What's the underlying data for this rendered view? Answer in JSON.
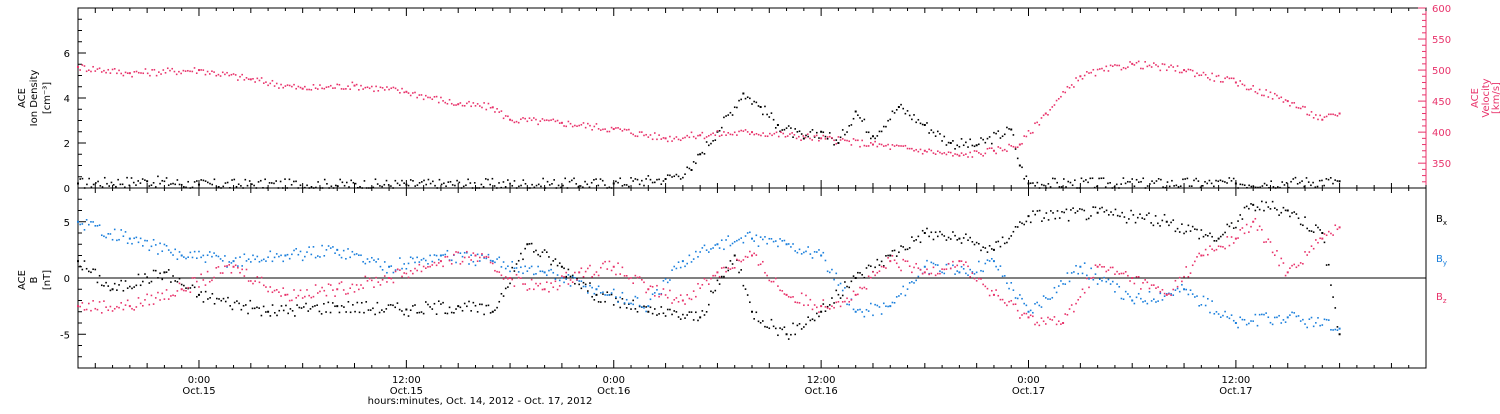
{
  "colors": {
    "black": "#000000",
    "pink": "#e8336b",
    "blue": "#1a7fdc"
  },
  "time_axis": {
    "start": "2012-10-14 17:00",
    "end": "2012-10-17 23:00",
    "xlabel": "hours:minutes, Oct. 14, 2012 - Oct. 17, 2012",
    "ticks": [
      {
        "time": "2012-10-15 00:00",
        "hm": "0:00",
        "date": "Oct.15"
      },
      {
        "time": "2012-10-15 12:00",
        "hm": "12:00",
        "date": "Oct.15"
      },
      {
        "time": "2012-10-16 00:00",
        "hm": "0:00",
        "date": "Oct.16"
      },
      {
        "time": "2012-10-16 12:00",
        "hm": "12:00",
        "date": "Oct.16"
      },
      {
        "time": "2012-10-17 00:00",
        "hm": "0:00",
        "date": "Oct.17"
      },
      {
        "time": "2012-10-17 12:00",
        "hm": "12:00",
        "date": "Oct.17"
      }
    ]
  },
  "chart_data": [
    {
      "type": "scatter",
      "panel": "top",
      "ylabel_lines": [
        "ACE",
        "Ion Density",
        "[cm⁻³]"
      ],
      "ylim": [
        0,
        8
      ],
      "yticks": [
        0,
        2,
        4,
        6
      ],
      "y2label_lines": [
        "ACE",
        "Velocity",
        "[km/s]"
      ],
      "y2lim": [
        310,
        600
      ],
      "y2ticks": [
        350,
        400,
        450,
        500,
        550,
        600
      ],
      "series": [
        {
          "key": "density",
          "axis": "left",
          "color": "#000000",
          "points": [
            [
              "2012-10-14 17:00",
              0.2
            ],
            [
              "2012-10-14 21:00",
              0.3
            ],
            [
              "2012-10-15 00:00",
              0.15
            ],
            [
              "2012-10-15 12:00",
              0.15
            ],
            [
              "2012-10-16 00:00",
              0.2
            ],
            [
              "2012-10-16 03:00",
              0.4
            ],
            [
              "2012-10-16 04:30",
              0.8
            ],
            [
              "2012-10-16 05:00",
              1.5
            ],
            [
              "2012-10-16 06:00",
              2.5
            ],
            [
              "2012-10-16 07:30",
              4.2
            ],
            [
              "2012-10-16 08:30",
              3.6
            ],
            [
              "2012-10-16 09:30",
              2.8
            ],
            [
              "2012-10-16 11:00",
              2.2
            ],
            [
              "2012-10-16 12:00",
              2.5
            ],
            [
              "2012-10-16 13:00",
              2.0
            ],
            [
              "2012-10-16 14:00",
              3.4
            ],
            [
              "2012-10-16 15:00",
              2.3
            ],
            [
              "2012-10-16 16:30",
              3.6
            ],
            [
              "2012-10-16 18:00",
              2.8
            ],
            [
              "2012-10-16 19:30",
              2.0
            ],
            [
              "2012-10-16 21:00",
              1.9
            ],
            [
              "2012-10-16 23:00",
              2.6
            ],
            [
              "2012-10-16 23:30",
              1.0
            ],
            [
              "2012-10-17 00:00",
              0.2
            ],
            [
              "2012-10-17 12:00",
              0.2
            ],
            [
              "2012-10-17 18:00",
              0.3
            ]
          ]
        },
        {
          "key": "velocity",
          "axis": "right",
          "color": "#e8336b",
          "points": [
            [
              "2012-10-14 17:00",
              505
            ],
            [
              "2012-10-14 20:00",
              495
            ],
            [
              "2012-10-15 00:00",
              500
            ],
            [
              "2012-10-15 03:00",
              485
            ],
            [
              "2012-10-15 06:00",
              470
            ],
            [
              "2012-10-15 09:00",
              475
            ],
            [
              "2012-10-15 12:00",
              465
            ],
            [
              "2012-10-15 15:00",
              445
            ],
            [
              "2012-10-15 17:00",
              440
            ],
            [
              "2012-10-15 18:00",
              420
            ],
            [
              "2012-10-15 21:00",
              415
            ],
            [
              "2012-10-16 00:00",
              405
            ],
            [
              "2012-10-16 03:00",
              390
            ],
            [
              "2012-10-16 05:00",
              395
            ],
            [
              "2012-10-16 08:00",
              400
            ],
            [
              "2012-10-16 12:00",
              390
            ],
            [
              "2012-10-16 15:00",
              380
            ],
            [
              "2012-10-16 18:00",
              370
            ],
            [
              "2012-10-16 20:00",
              362
            ],
            [
              "2012-10-16 22:00",
              370
            ],
            [
              "2012-10-16 23:30",
              380
            ],
            [
              "2012-10-17 01:00",
              430
            ],
            [
              "2012-10-17 03:00",
              490
            ],
            [
              "2012-10-17 06:00",
              510
            ],
            [
              "2012-10-17 09:00",
              500
            ],
            [
              "2012-10-17 12:00",
              480
            ],
            [
              "2012-10-17 15:00",
              450
            ],
            [
              "2012-10-17 17:00",
              420
            ],
            [
              "2012-10-17 18:00",
              430
            ]
          ]
        }
      ]
    },
    {
      "type": "scatter",
      "panel": "bottom",
      "ylabel_lines": [
        "ACE",
        "B",
        "[nT]"
      ],
      "ylim": [
        -8,
        8
      ],
      "yticks": [
        -5,
        0,
        5
      ],
      "zero_line": true,
      "series": [
        {
          "key": "bx",
          "name": "Bx",
          "color": "#000000",
          "points": [
            [
              "2012-10-14 17:00",
              1.5
            ],
            [
              "2012-10-14 19:00",
              -1.0
            ],
            [
              "2012-10-14 22:00",
              0.5
            ],
            [
              "2012-10-15 00:00",
              -1.5
            ],
            [
              "2012-10-15 04:00",
              -3.0
            ],
            [
              "2012-10-15 08:00",
              -2.5
            ],
            [
              "2012-10-15 12:00",
              -2.8
            ],
            [
              "2012-10-15 15:00",
              -2.5
            ],
            [
              "2012-10-15 17:00",
              -3.0
            ],
            [
              "2012-10-15 19:00",
              3.0
            ],
            [
              "2012-10-15 21:00",
              1.0
            ],
            [
              "2012-10-15 23:00",
              -1.5
            ],
            [
              "2012-10-16 02:00",
              -3.0
            ],
            [
              "2012-10-16 05:00",
              -3.5
            ],
            [
              "2012-10-16 07:00",
              2.0
            ],
            [
              "2012-10-16 08:00",
              -3.0
            ],
            [
              "2012-10-16 10:00",
              -5.0
            ],
            [
              "2012-10-16 12:00",
              -3.0
            ],
            [
              "2012-10-16 14:00",
              0.0
            ],
            [
              "2012-10-16 16:00",
              2.0
            ],
            [
              "2012-10-16 18:00",
              4.0
            ],
            [
              "2012-10-16 20:00",
              3.5
            ],
            [
              "2012-10-16 22:00",
              2.5
            ],
            [
              "2012-10-17 00:00",
              5.5
            ],
            [
              "2012-10-17 04:00",
              5.8
            ],
            [
              "2012-10-17 08:00",
              5.0
            ],
            [
              "2012-10-17 11:00",
              3.5
            ],
            [
              "2012-10-17 13:00",
              6.5
            ],
            [
              "2012-10-17 15:00",
              6.0
            ],
            [
              "2012-10-17 17:00",
              4.0
            ],
            [
              "2012-10-17 18:00",
              -5.0
            ]
          ]
        },
        {
          "key": "by",
          "name": "By",
          "color": "#1a7fdc",
          "points": [
            [
              "2012-10-14 17:00",
              5.0
            ],
            [
              "2012-10-14 20:00",
              3.5
            ],
            [
              "2012-10-14 23:00",
              2.0
            ],
            [
              "2012-10-15 02:00",
              1.5
            ],
            [
              "2012-10-15 05:00",
              2.0
            ],
            [
              "2012-10-15 08:00",
              2.5
            ],
            [
              "2012-10-15 11:00",
              1.0
            ],
            [
              "2012-10-15 14:00",
              2.0
            ],
            [
              "2012-10-15 17:00",
              1.5
            ],
            [
              "2012-10-15 20:00",
              0.5
            ],
            [
              "2012-10-15 23:00",
              -1.0
            ],
            [
              "2012-10-16 02:00",
              -2.5
            ],
            [
              "2012-10-16 04:00",
              1.5
            ],
            [
              "2012-10-16 06:00",
              3.0
            ],
            [
              "2012-10-16 08:00",
              3.5
            ],
            [
              "2012-10-16 10:00",
              3.0
            ],
            [
              "2012-10-16 12:00",
              2.0
            ],
            [
              "2012-10-16 14:00",
              -3.0
            ],
            [
              "2012-10-16 16:00",
              -2.5
            ],
            [
              "2012-10-16 18:00",
              1.0
            ],
            [
              "2012-10-16 20:00",
              0.5
            ],
            [
              "2012-10-16 22:00",
              1.5
            ],
            [
              "2012-10-17 00:00",
              -3.0
            ],
            [
              "2012-10-17 03:00",
              1.0
            ],
            [
              "2012-10-17 06:00",
              -2.0
            ],
            [
              "2012-10-17 09:00",
              -1.0
            ],
            [
              "2012-10-17 12:00",
              -4.0
            ],
            [
              "2012-10-17 15:00",
              -3.5
            ],
            [
              "2012-10-17 18:00",
              -4.5
            ]
          ]
        },
        {
          "key": "bz",
          "name": "Bz",
          "color": "#e8336b",
          "points": [
            [
              "2012-10-14 17:00",
              -2.5
            ],
            [
              "2012-10-14 20:00",
              -2.5
            ],
            [
              "2012-10-14 23:00",
              -1.0
            ],
            [
              "2012-10-15 02:00",
              1.0
            ],
            [
              "2012-10-15 05:00",
              -1.5
            ],
            [
              "2012-10-15 08:00",
              -1.0
            ],
            [
              "2012-10-15 11:00",
              0.0
            ],
            [
              "2012-10-15 14:00",
              1.5
            ],
            [
              "2012-10-15 16:00",
              2.0
            ],
            [
              "2012-10-15 18:00",
              0.0
            ],
            [
              "2012-10-15 20:00",
              -1.0
            ],
            [
              "2012-10-15 22:00",
              0.5
            ],
            [
              "2012-10-16 00:00",
              1.0
            ],
            [
              "2012-10-16 02:00",
              -1.0
            ],
            [
              "2012-10-16 04:00",
              -2.0
            ],
            [
              "2012-10-16 06:00",
              0.5
            ],
            [
              "2012-10-16 08:00",
              2.0
            ],
            [
              "2012-10-16 10:00",
              -1.5
            ],
            [
              "2012-10-16 12:00",
              -2.5
            ],
            [
              "2012-10-16 14:00",
              -1.5
            ],
            [
              "2012-10-16 16:00",
              1.5
            ],
            [
              "2012-10-16 18:00",
              0.5
            ],
            [
              "2012-10-16 20:00",
              1.5
            ],
            [
              "2012-10-16 22:00",
              -1.5
            ],
            [
              "2012-10-17 00:00",
              -3.5
            ],
            [
              "2012-10-17 02:00",
              -4.0
            ],
            [
              "2012-10-17 04:00",
              1.0
            ],
            [
              "2012-10-17 06:00",
              0.0
            ],
            [
              "2012-10-17 08:00",
              -1.5
            ],
            [
              "2012-10-17 10:00",
              2.0
            ],
            [
              "2012-10-17 12:00",
              3.5
            ],
            [
              "2012-10-17 13:00",
              5.0
            ],
            [
              "2012-10-17 15:00",
              0.5
            ],
            [
              "2012-10-17 17:00",
              3.5
            ],
            [
              "2012-10-17 18:00",
              4.5
            ]
          ]
        }
      ]
    }
  ]
}
